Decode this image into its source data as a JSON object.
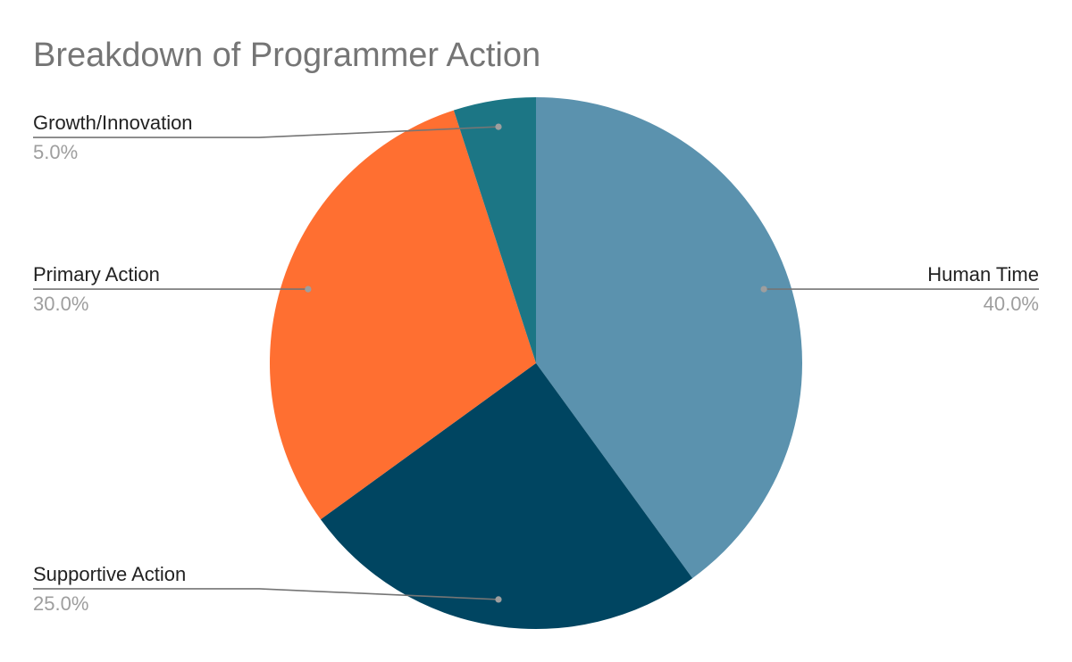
{
  "chart_data": {
    "type": "pie",
    "title": "Breakdown of Programmer Action",
    "legend": "none",
    "slices": [
      {
        "name": "Human Time",
        "value": 40.0,
        "label": "40.0%",
        "color": "#5B92AE"
      },
      {
        "name": "Supportive Action",
        "value": 25.0,
        "label": "25.0%",
        "color": "#004561"
      },
      {
        "name": "Primary Action",
        "value": 30.0,
        "label": "30.0%",
        "color": "#FF6F31"
      },
      {
        "name": "Growth/Innovation",
        "value": 5.0,
        "label": "5.0%",
        "color": "#1C7685"
      }
    ],
    "leader_color": "#757575",
    "dot_color": "#9E9E9E"
  }
}
